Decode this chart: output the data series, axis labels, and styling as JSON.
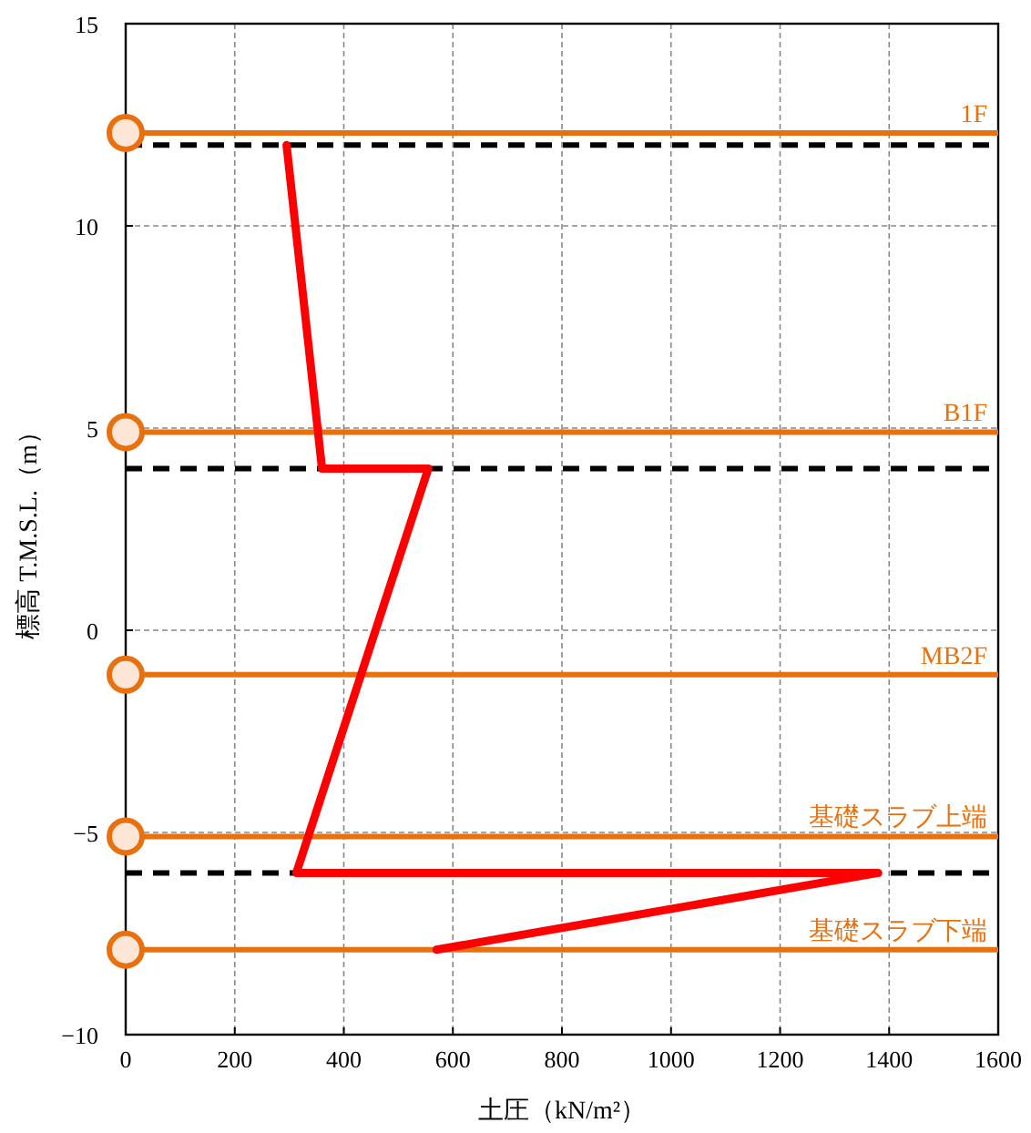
{
  "chart_data": {
    "type": "line",
    "xlabel": "土圧（kN/m²）",
    "ylabel": "標高 T.M.S.L.（m）",
    "xlim": [
      0,
      1600
    ],
    "xticks": [
      0,
      200,
      400,
      600,
      800,
      1000,
      1200,
      1400,
      1600
    ],
    "ylim": [
      -10,
      15
    ],
    "yticks": [
      -10,
      -5,
      0,
      5,
      10,
      15
    ],
    "grid": true,
    "series": [
      {
        "color": "#ff0000",
        "x": [
          295,
          360,
          555,
          313,
          1380,
          570
        ],
        "values": [
          12,
          4,
          4,
          -6,
          -6,
          -7.9
        ],
        "line_style": "solid"
      },
      {
        "type": "scatter",
        "color": "#e8700f",
        "x": [
          0,
          0,
          0,
          0,
          0
        ],
        "values": [
          12.3,
          4.9,
          -1.1,
          -5.1,
          -7.9
        ],
        "marker": "circle"
      }
    ],
    "ref_lines": [
      {
        "axis": "y",
        "value": 12.3,
        "label": "1F",
        "color": "#e8700f",
        "line_style": "solid"
      },
      {
        "axis": "y",
        "value": 4.9,
        "label": "B1F",
        "color": "#e8700f",
        "line_style": "solid"
      },
      {
        "axis": "y",
        "value": -1.1,
        "label": "MB2F",
        "color": "#e8700f",
        "line_style": "solid"
      },
      {
        "axis": "y",
        "value": -5.1,
        "label": "基礎スラブ上端",
        "color": "#e8700f",
        "line_style": "solid"
      },
      {
        "axis": "y",
        "value": -7.9,
        "label": "基礎スラブ下端",
        "color": "#e8700f",
        "line_style": "solid"
      },
      {
        "axis": "y",
        "value": 12,
        "color": "#000000",
        "line_style": "dashed"
      },
      {
        "axis": "y",
        "value": 4,
        "color": "#000000",
        "line_style": "dashed"
      },
      {
        "axis": "y",
        "value": -6,
        "color": "#000000",
        "line_style": "dashed"
      }
    ]
  }
}
